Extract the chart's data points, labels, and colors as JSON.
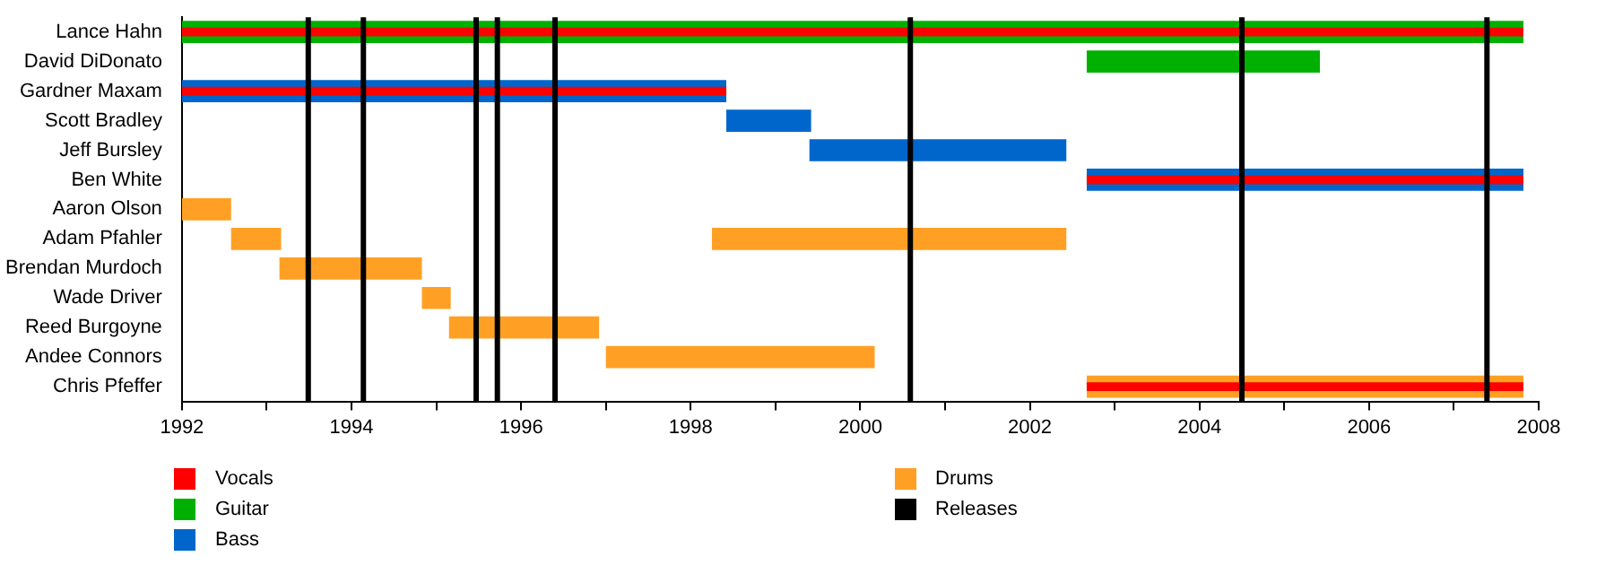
{
  "chart_data": {
    "type": "bar",
    "orientation": "horizontal",
    "categories": [
      "Lance Hahn",
      "David DiDonato",
      "Gardner Maxam",
      "Scott Bradley",
      "Jeff Bursley",
      "Ben White",
      "Aaron Olson",
      "Adam Pfahler",
      "Brendan Murdoch",
      "Wade Driver",
      "Reed Burgoyne",
      "Andee Connors",
      "Chris Pfeffer"
    ],
    "series": [
      {
        "name": "Vocals",
        "color": "#ff0000",
        "base": [
          1992,
          null,
          1992,
          null,
          null,
          2002.67,
          null,
          null,
          null,
          null,
          null,
          null,
          2002.67
        ],
        "values": [
          15.82,
          null,
          6.42,
          null,
          null,
          5.15,
          null,
          null,
          null,
          null,
          null,
          null,
          5.15
        ]
      },
      {
        "name": "Guitar",
        "color": "#00b000",
        "base": [
          1992,
          2002.67,
          null,
          null,
          null,
          null,
          null,
          null,
          null,
          null,
          null,
          null,
          null
        ],
        "values": [
          15.82,
          2.75,
          null,
          null,
          null,
          null,
          null,
          null,
          null,
          null,
          null,
          null,
          null
        ]
      },
      {
        "name": "Bass",
        "color": "#0066cc",
        "base": [
          null,
          null,
          1992,
          1998.42,
          1999.4,
          2002.67,
          null,
          null,
          null,
          null,
          null,
          null,
          null
        ],
        "values": [
          null,
          null,
          6.42,
          1.0,
          3.03,
          5.15,
          null,
          null,
          null,
          null,
          null,
          null,
          null
        ]
      },
      {
        "name": "Drums",
        "color": "#ffa024",
        "base": [
          null,
          null,
          null,
          null,
          null,
          null,
          1992,
          1992.58,
          1993.15,
          1994.83,
          1995.15,
          1997.0,
          2002.67
        ],
        "values": [
          null,
          null,
          null,
          null,
          null,
          null,
          0.58,
          0.59,
          1.68,
          0.34,
          1.77,
          3.17,
          5.15
        ]
      },
      {
        "color": "#ffa024",
        "base": [
          null,
          null,
          null,
          null,
          null,
          null,
          null,
          1998.25,
          null,
          null,
          null,
          null,
          null
        ],
        "values": [
          null,
          null,
          null,
          null,
          null,
          null,
          null,
          4.18,
          null,
          null,
          null,
          null,
          null
        ]
      }
    ],
    "xlim": [
      1992,
      2008
    ],
    "xticks": [
      1992,
      {
        "value": 1993,
        "label": null
      },
      1994,
      {
        "value": 1995,
        "label": null
      },
      1996,
      {
        "value": 1997,
        "label": null
      },
      1998,
      {
        "value": 1999,
        "label": null
      },
      2000,
      {
        "value": 2001,
        "label": null
      },
      2002,
      {
        "value": 2003,
        "label": null
      },
      2004,
      {
        "value": 2005,
        "label": null
      },
      2006,
      {
        "value": 2007,
        "label": null
      },
      2008
    ],
    "ref_lines": [
      {
        "axis": "x",
        "value": 1993.49,
        "label": "Releases",
        "color": "#000000"
      },
      {
        "axis": "x",
        "value": 1994.14,
        "color": "#000000"
      },
      {
        "axis": "x",
        "value": 1995.47,
        "color": "#000000"
      },
      {
        "axis": "x",
        "value": 1995.72,
        "color": "#000000"
      },
      {
        "axis": "x",
        "value": 1996.4,
        "color": "#000000"
      },
      {
        "axis": "x",
        "value": 2000.59,
        "color": "#000000"
      },
      {
        "axis": "x",
        "value": 2004.5,
        "color": "#000000"
      },
      {
        "axis": "x",
        "value": 2007.39,
        "color": "#000000"
      }
    ],
    "grid": false,
    "legend": "bottom"
  }
}
